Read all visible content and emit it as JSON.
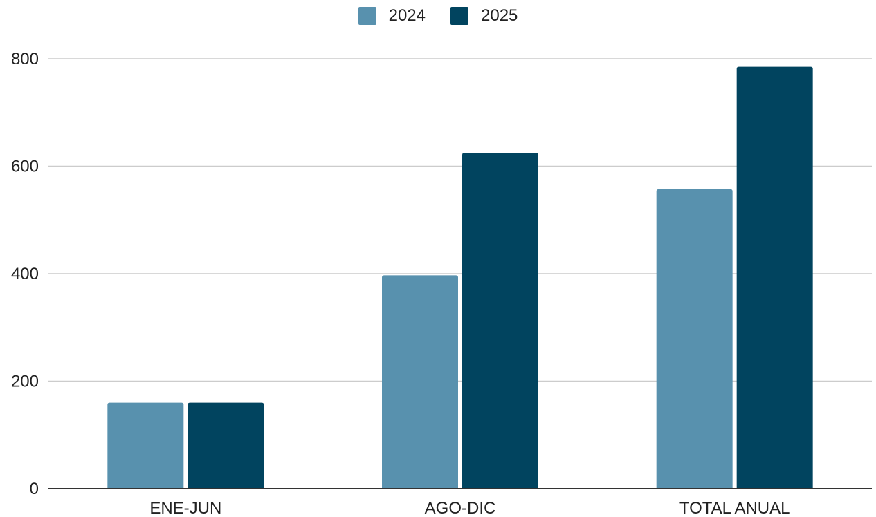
{
  "chart_data": {
    "type": "bar",
    "categories": [
      "ENE-JUN",
      "AGO-DIC",
      "TOTAL ANUAL"
    ],
    "series": [
      {
        "name": "2024",
        "values": [
          160,
          397,
          557
        ],
        "color": "#5891ae"
      },
      {
        "name": "2025",
        "values": [
          160,
          625,
          785
        ],
        "color": "#01445f"
      }
    ],
    "ylim": [
      0,
      800
    ],
    "yticks": [
      0,
      200,
      400,
      600,
      800
    ],
    "grid": true,
    "legend": "top-center",
    "title": "",
    "xlabel": "",
    "ylabel": ""
  }
}
